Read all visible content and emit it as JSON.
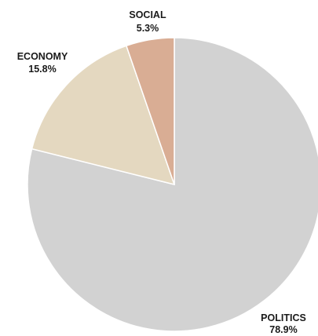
{
  "chart_data": {
    "type": "pie",
    "start_angle_deg": 0,
    "direction": "clockwise",
    "slices": [
      {
        "label": "POLITICS",
        "value": 78.9,
        "value_label": "78.9%",
        "color": "#d2d2d2"
      },
      {
        "label": "ECONOMY",
        "value": 15.8,
        "value_label": "15.8%",
        "color": "#e4d8c0"
      },
      {
        "label": "SOCIAL",
        "value": 5.3,
        "value_label": "5.3%",
        "color": "#d9ad94"
      }
    ]
  }
}
